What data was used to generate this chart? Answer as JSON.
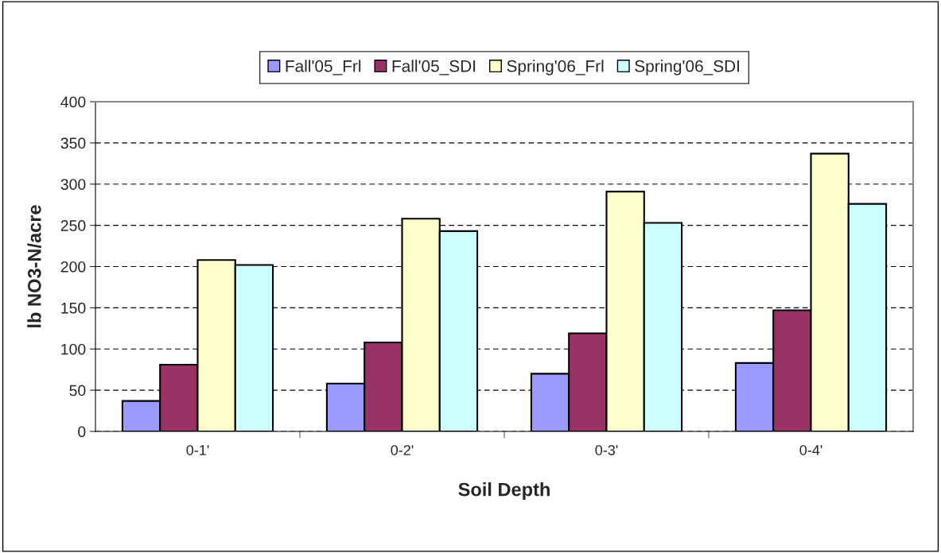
{
  "chart_data": {
    "type": "bar",
    "xlabel": "Soil Depth",
    "ylabel": "lb NO3-N/acre",
    "categories": [
      "0-1'",
      "0-2'",
      "0-3'",
      "0-4'"
    ],
    "series": [
      {
        "name": "Fall'05_Frl",
        "color": "#9999ff",
        "values": [
          37,
          58,
          70,
          83
        ]
      },
      {
        "name": "Fall'05_SDI",
        "color": "#993366",
        "values": [
          81,
          108,
          119,
          147
        ]
      },
      {
        "name": "Spring'06_Frl",
        "color": "#ffffcc",
        "values": [
          208,
          258,
          291,
          337
        ]
      },
      {
        "name": "Spring'06_SDI",
        "color": "#ccffff",
        "values": [
          202,
          243,
          253,
          276
        ]
      }
    ],
    "ylim": [
      0,
      400
    ],
    "yticks": [
      0,
      50,
      100,
      150,
      200,
      250,
      300,
      350,
      400
    ],
    "grid": "y",
    "legend": "top"
  }
}
